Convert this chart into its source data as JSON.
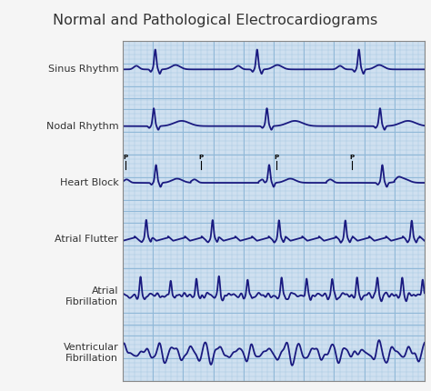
{
  "title": "Normal and Pathological Electrocardiograms",
  "title_fontsize": 11.5,
  "bg_color": "#cfe0f0",
  "ecg_color": "#1a1a80",
  "grid_minor_color": "#a8c8e0",
  "grid_major_color": "#90b8d8",
  "text_color": "#333333",
  "labels": [
    "Sinus Rhythm",
    "Nodal Rhythm",
    "Heart Block",
    "Atrial Flutter",
    "Atrial\nFibrillation",
    "Ventricular\nFibrillation"
  ],
  "label_fontsize": 8.0,
  "outer_bg": "#f5f5f5",
  "border_color": "#888888"
}
